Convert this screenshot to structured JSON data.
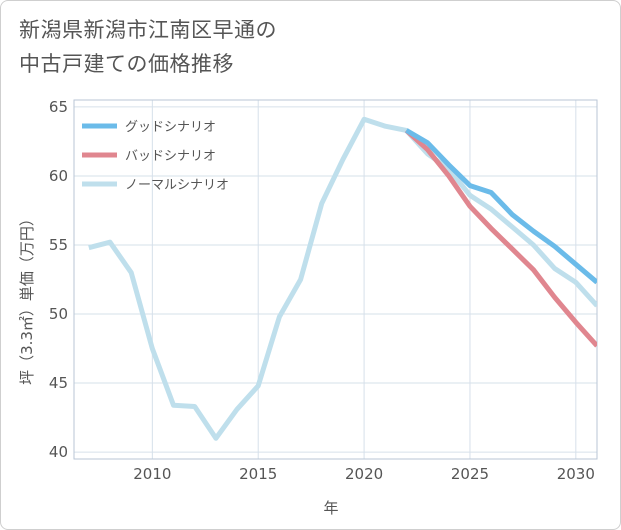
{
  "chart_data": {
    "type": "line",
    "title_line1": "新潟県新潟市江南区早通の",
    "title_line2": "中古戸建ての価格推移",
    "xlabel": "年",
    "ylabel": "坪（3.3㎡）単価（万円）",
    "xlim": [
      2006.3,
      2031
    ],
    "ylim": [
      39.5,
      65.5
    ],
    "x_ticks": [
      2010,
      2015,
      2020,
      2025,
      2030
    ],
    "y_ticks": [
      40,
      45,
      50,
      55,
      60,
      65
    ],
    "grid": true,
    "legend_position": "top-left",
    "series": [
      {
        "name": "グッドシナリオ",
        "color": "#6bbbe9",
        "x": [
          2022,
          2023,
          2024,
          2025,
          2026,
          2027,
          2028,
          2029,
          2030,
          2031
        ],
        "y": [
          63.3,
          62.4,
          60.8,
          59.3,
          58.8,
          57.2,
          56.0,
          54.9,
          53.6,
          52.3
        ]
      },
      {
        "name": "バッドシナリオ",
        "color": "#e0868f",
        "x": [
          2022,
          2023,
          2024,
          2025,
          2026,
          2027,
          2028,
          2029,
          2030,
          2031
        ],
        "y": [
          63.3,
          61.9,
          60.0,
          57.8,
          56.2,
          54.7,
          53.2,
          51.2,
          49.4,
          47.7
        ]
      },
      {
        "name": "ノーマルシナリオ",
        "color": "#bfdfec",
        "x": [
          2007,
          2008,
          2009,
          2010,
          2011,
          2012,
          2013,
          2014,
          2015,
          2016,
          2017,
          2018,
          2019,
          2020,
          2021,
          2022,
          2023,
          2024,
          2025,
          2026,
          2027,
          2028,
          2029,
          2030,
          2031
        ],
        "y": [
          54.8,
          55.2,
          53.0,
          47.5,
          43.4,
          43.3,
          41.0,
          43.1,
          44.8,
          49.8,
          52.5,
          58.0,
          61.2,
          64.1,
          63.6,
          63.3,
          61.6,
          60.5,
          58.6,
          57.6,
          56.3,
          55.0,
          53.3,
          52.3,
          50.6
        ]
      }
    ]
  }
}
